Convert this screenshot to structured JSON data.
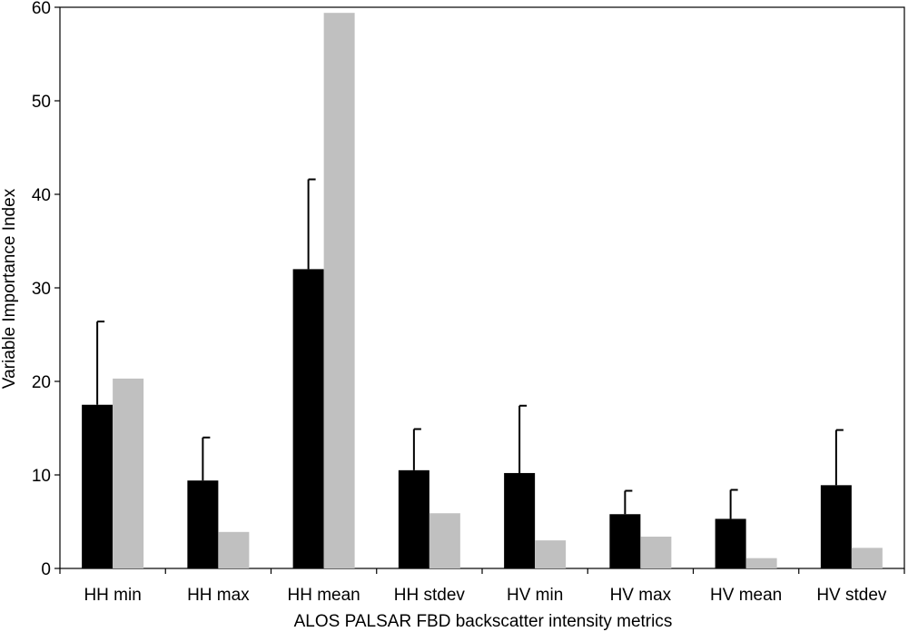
{
  "chart_data": {
    "type": "bar",
    "title": "",
    "xlabel": "ALOS PALSAR FBD backscatter intensity metrics",
    "ylabel": "Variable Importance Index",
    "ylim": [
      0,
      60
    ],
    "yticks": [
      0,
      10,
      20,
      30,
      40,
      50,
      60
    ],
    "grid": false,
    "legend": "none",
    "categories": [
      "HH min",
      "HH max",
      "HH mean",
      "HH stdev",
      "HV min",
      "HV max",
      "HV mean",
      "HV stdev"
    ],
    "series": [
      {
        "color": "#000000",
        "values": [
          17.5,
          9.4,
          32.0,
          10.5,
          10.2,
          5.8,
          5.3,
          8.9
        ],
        "error_upper": [
          26.4,
          14.0,
          41.6,
          14.9,
          17.4,
          8.3,
          8.4,
          14.8
        ]
      },
      {
        "color": "#c0c0c0",
        "values": [
          20.3,
          3.9,
          59.4,
          5.9,
          3.0,
          3.4,
          1.1,
          2.2
        ]
      }
    ]
  }
}
